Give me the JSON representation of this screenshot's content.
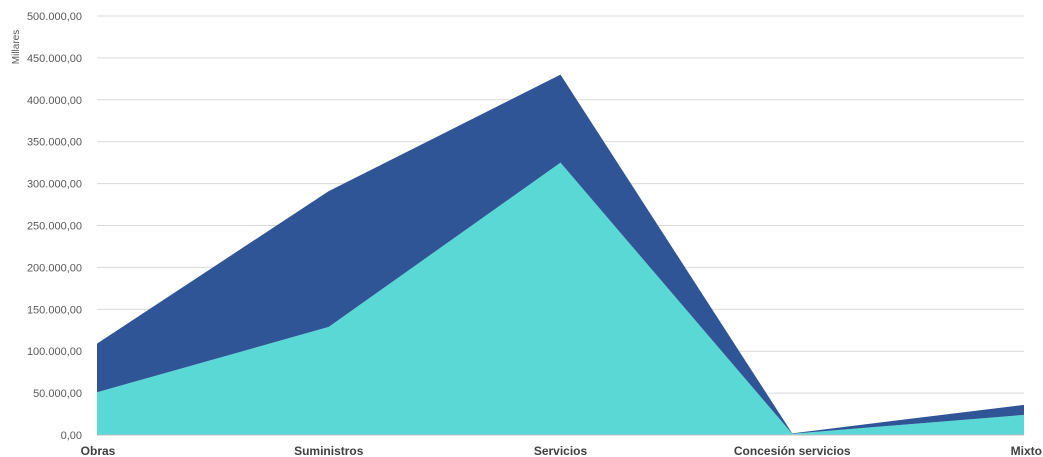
{
  "chart_data": {
    "type": "area",
    "stacked": true,
    "title": "",
    "xlabel": "",
    "ylabel": "Millares",
    "categories": [
      "Obras",
      "Suministros",
      "Servicios",
      "Concesión servicios",
      "Mixto"
    ],
    "ylim": [
      0,
      500000
    ],
    "y_ticks": [
      0,
      50000,
      100000,
      150000,
      200000,
      250000,
      300000,
      350000,
      400000,
      450000,
      500000
    ],
    "y_tick_labels": [
      "0,00",
      "50.000,00",
      "100.000,00",
      "150.000,00",
      "200.000,00",
      "250.000,00",
      "300.000,00",
      "350.000,00",
      "400.000,00",
      "450.000,00",
      "500.000,00"
    ],
    "grid": true,
    "legend": "none",
    "series": [
      {
        "values": [
          51000,
          129000,
          325000,
          1500,
          24000
        ],
        "color": "#5ad8d6"
      },
      {
        "values": [
          58000,
          162000,
          105000,
          500,
          12000
        ],
        "color": "#2f5597"
      }
    ]
  }
}
